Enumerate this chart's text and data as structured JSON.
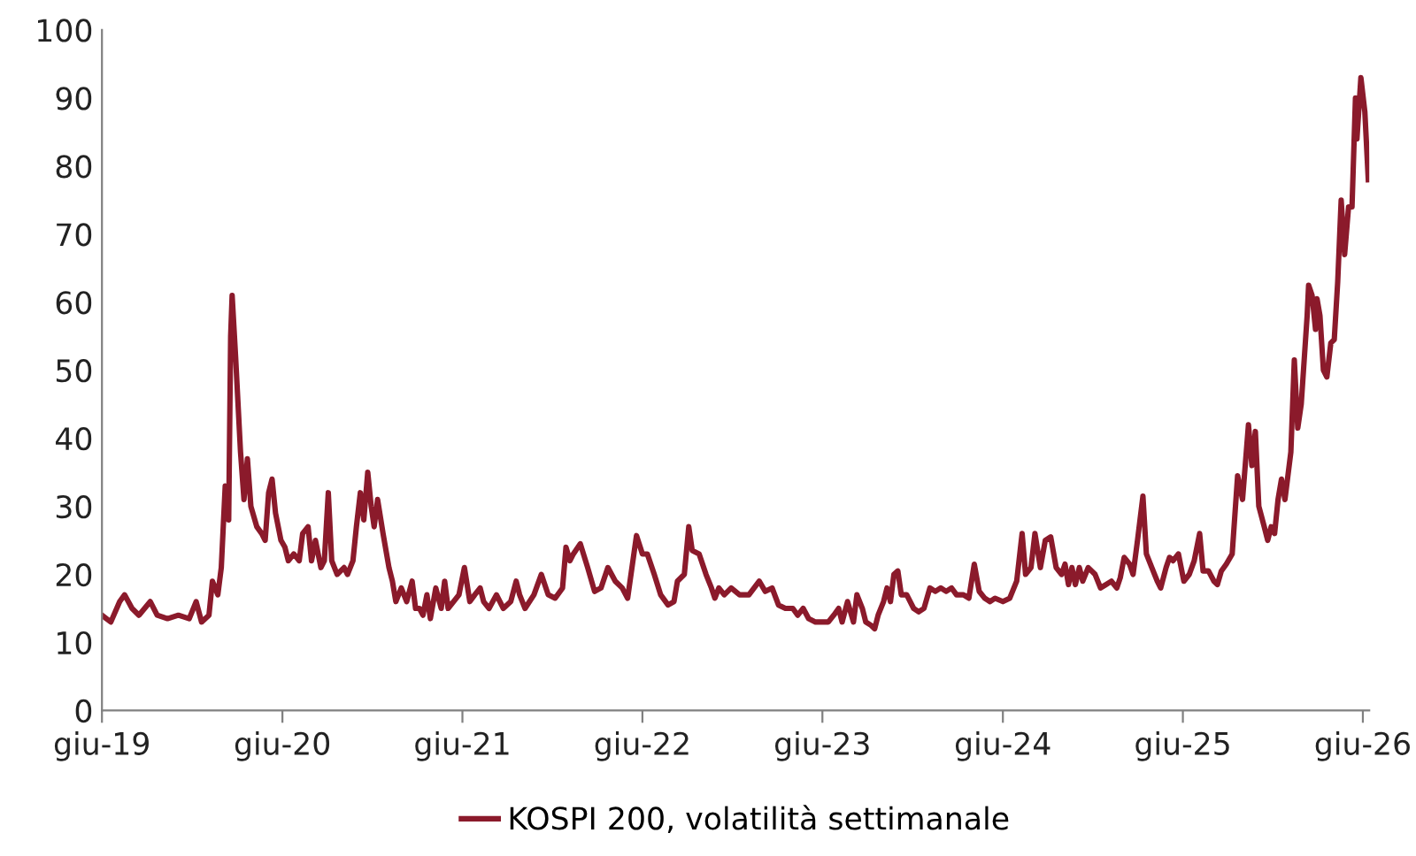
{
  "chart_data": {
    "type": "line",
    "xlim": [
      "2019-06-01",
      "2026-06-14"
    ],
    "xticks": [
      {
        "value": "2019-06-01",
        "label": "giu-19"
      },
      {
        "value": "2020-06-01",
        "label": "giu-20"
      },
      {
        "value": "2021-06-01",
        "label": "giu-21"
      },
      {
        "value": "2022-06-01",
        "label": "giu-22"
      },
      {
        "value": "2023-06-01",
        "label": "giu-23"
      },
      {
        "value": "2024-06-01",
        "label": "giu-24"
      },
      {
        "value": "2025-06-01",
        "label": "giu-25"
      },
      {
        "value": "2026-06-01",
        "label": "giu-26"
      }
    ],
    "ylim": [
      0,
      100
    ],
    "yticks": [
      0,
      10,
      20,
      30,
      40,
      50,
      60,
      70,
      80,
      90,
      100
    ],
    "grid": false,
    "legend": "bottom",
    "marker": "none",
    "line_style": "solid",
    "x": [
      "2019-06-01",
      "2019-06-19",
      "2019-07-07",
      "2019-07-17",
      "2019-08-01",
      "2019-08-15",
      "2019-09-07",
      "2019-09-21",
      "2019-10-12",
      "2019-11-03",
      "2019-11-25",
      "2019-12-09",
      "2019-12-20",
      "2020-01-04",
      "2020-01-11",
      "2020-01-22",
      "2020-01-29",
      "2020-02-06",
      "2020-02-13",
      "2020-02-17",
      "2020-02-20",
      "2020-02-27",
      "2020-03-08",
      "2020-03-15",
      "2020-03-22",
      "2020-03-29",
      "2020-04-10",
      "2020-04-20",
      "2020-04-27",
      "2020-05-04",
      "2020-05-11",
      "2020-05-18",
      "2020-05-29",
      "2020-06-06",
      "2020-06-13",
      "2020-06-24",
      "2020-07-05",
      "2020-07-12",
      "2020-07-23",
      "2020-07-30",
      "2020-08-07",
      "2020-08-18",
      "2020-08-25",
      "2020-09-02",
      "2020-09-09",
      "2020-09-20",
      "2020-10-04",
      "2020-10-11",
      "2020-10-22",
      "2020-10-29",
      "2020-11-06",
      "2020-11-13",
      "2020-11-21",
      "2020-11-28",
      "2020-12-04",
      "2020-12-11",
      "2020-12-22",
      "2021-01-03",
      "2021-01-10",
      "2021-01-17",
      "2021-01-28",
      "2021-02-08",
      "2021-02-19",
      "2021-02-26",
      "2021-03-06",
      "2021-03-13",
      "2021-03-21",
      "2021-03-28",
      "2021-04-08",
      "2021-04-19",
      "2021-04-26",
      "2021-05-03",
      "2021-05-14",
      "2021-05-25",
      "2021-06-05",
      "2021-06-16",
      "2021-06-26",
      "2021-07-07",
      "2021-07-14",
      "2021-07-25",
      "2021-08-09",
      "2021-08-23",
      "2021-09-07",
      "2021-09-18",
      "2021-09-25",
      "2021-10-06",
      "2021-10-24",
      "2021-11-08",
      "2021-11-22",
      "2021-12-06",
      "2021-12-21",
      "2021-12-28",
      "2022-01-05",
      "2022-01-12",
      "2022-01-26",
      "2022-02-10",
      "2022-02-24",
      "2022-03-09",
      "2022-03-23",
      "2022-04-07",
      "2022-04-21",
      "2022-05-02",
      "2022-05-20",
      "2022-06-01",
      "2022-06-11",
      "2022-06-25",
      "2022-07-08",
      "2022-07-23",
      "2022-08-04",
      "2022-08-11",
      "2022-08-25",
      "2022-09-03",
      "2022-09-10",
      "2022-09-24",
      "2022-10-08",
      "2022-10-19",
      "2022-10-26",
      "2022-11-03",
      "2022-11-14",
      "2022-11-28",
      "2022-12-15",
      "2023-01-03",
      "2023-01-24",
      "2023-02-05",
      "2023-02-19",
      "2023-03-04",
      "2023-03-18",
      "2023-04-02",
      "2023-04-12",
      "2023-04-23",
      "2023-05-04",
      "2023-05-18",
      "2023-06-01",
      "2023-06-13",
      "2023-06-24",
      "2023-07-04",
      "2023-07-11",
      "2023-07-22",
      "2023-08-03",
      "2023-08-10",
      "2023-08-21",
      "2023-08-28",
      "2023-09-08",
      "2023-09-15",
      "2023-09-22",
      "2023-10-03",
      "2023-10-10",
      "2023-10-17",
      "2023-10-24",
      "2023-11-01",
      "2023-11-08",
      "2023-11-19",
      "2023-12-03",
      "2023-12-13",
      "2023-12-24",
      "2024-01-05",
      "2024-01-16",
      "2024-01-27",
      "2024-02-07",
      "2024-02-18",
      "2024-02-28",
      "2024-03-13",
      "2024-03-24",
      "2024-04-04",
      "2024-04-14",
      "2024-04-25",
      "2024-05-06",
      "2024-05-16",
      "2024-06-01",
      "2024-06-15",
      "2024-06-29",
      "2024-07-10",
      "2024-07-17",
      "2024-07-28",
      "2024-08-05",
      "2024-08-16",
      "2024-08-26",
      "2024-09-06",
      "2024-09-17",
      "2024-09-28",
      "2024-10-05",
      "2024-10-12",
      "2024-10-19",
      "2024-10-26",
      "2024-11-03",
      "2024-11-10",
      "2024-11-21",
      "2024-12-05",
      "2024-12-16",
      "2024-12-27",
      "2025-01-07",
      "2025-01-18",
      "2025-01-25",
      "2025-02-02",
      "2025-02-13",
      "2025-02-20",
      "2025-03-01",
      "2025-03-12",
      "2025-03-19",
      "2025-03-30",
      "2025-04-10",
      "2025-04-17",
      "2025-04-28",
      "2025-05-05",
      "2025-05-12",
      "2025-05-23",
      "2025-06-03",
      "2025-06-14",
      "2025-06-24",
      "2025-07-05",
      "2025-07-12",
      "2025-07-23",
      "2025-08-03",
      "2025-08-10",
      "2025-08-18",
      "2025-08-28",
      "2025-09-09",
      "2025-09-20",
      "2025-09-30",
      "2025-10-12",
      "2025-10-19",
      "2025-10-26",
      "2025-11-02",
      "2025-11-13",
      "2025-11-20",
      "2025-11-27",
      "2025-12-04",
      "2025-12-11",
      "2025-12-18",
      "2025-12-25",
      "2026-01-06",
      "2026-01-13",
      "2026-01-20",
      "2026-01-27",
      "2026-02-08",
      "2026-02-11",
      "2026-02-18",
      "2026-02-25",
      "2026-02-28",
      "2026-03-06",
      "2026-03-13",
      "2026-03-20",
      "2026-03-28",
      "2026-04-04",
      "2026-04-11",
      "2026-04-18",
      "2026-04-25",
      "2026-05-03",
      "2026-05-10",
      "2026-05-17",
      "2026-05-20",
      "2026-05-28",
      "2026-06-05",
      "2026-06-12"
    ],
    "series": [
      {
        "name": "KOSPI 200, volatilità settimanale",
        "color": "#8b1a2b",
        "values": [
          14,
          13,
          16,
          17,
          15,
          14,
          16,
          14,
          13.5,
          14,
          13.5,
          16,
          13,
          14,
          19,
          17,
          21,
          33,
          28,
          55,
          61,
          52,
          38,
          31,
          37,
          30,
          27,
          26,
          25,
          32,
          34,
          29,
          25,
          24,
          22,
          23,
          22,
          26,
          27,
          22,
          25,
          21,
          22,
          32,
          22,
          20,
          21,
          20,
          22,
          27,
          32,
          28,
          35,
          30,
          27,
          31,
          26,
          21,
          19,
          16,
          18,
          16,
          19,
          15,
          15,
          14,
          17,
          13.5,
          18,
          15,
          19,
          15,
          16,
          17,
          21,
          16,
          17,
          18,
          16,
          15,
          17,
          15,
          16,
          19,
          17,
          15,
          17,
          20,
          17,
          16.5,
          18,
          24,
          22,
          23,
          24.5,
          21,
          17.5,
          18,
          21,
          19,
          18,
          16.5,
          25.7,
          23,
          23,
          20,
          17,
          15.5,
          16,
          19,
          20,
          27,
          23.5,
          23,
          20,
          18,
          16.5,
          18,
          17,
          18,
          17,
          17,
          19,
          17.5,
          18,
          15.5,
          15,
          15,
          14,
          15,
          13.5,
          13,
          13,
          13,
          14,
          15,
          13,
          16,
          13,
          17,
          15,
          13,
          12.5,
          12,
          14,
          16,
          18,
          16,
          20,
          20.5,
          17,
          17,
          15,
          14.5,
          15,
          18,
          17.5,
          18,
          17.5,
          18,
          17,
          17,
          16.5,
          21.5,
          17.5,
          16.5,
          16,
          16.5,
          16,
          16.5,
          19,
          26,
          20,
          21,
          26,
          21,
          25,
          25.5,
          21,
          20,
          21.5,
          18.5,
          21,
          18.5,
          21,
          19,
          21,
          20,
          18,
          18.5,
          19,
          18,
          19.5,
          22.5,
          21.5,
          20,
          25,
          31.5,
          23,
          21,
          19,
          18,
          21,
          22.5,
          22,
          23,
          19,
          20,
          22,
          26,
          20.5,
          20.5,
          19,
          18.5,
          20.5,
          21.5,
          23,
          34.5,
          31,
          42,
          36,
          41,
          30,
          27,
          25,
          27,
          26,
          31,
          34,
          31,
          38,
          51.5,
          41.5,
          45,
          58,
          62.5,
          61,
          56,
          60.5,
          58,
          50,
          49,
          54,
          54.5,
          63,
          75,
          67,
          74,
          74,
          90,
          84,
          93,
          88,
          78
        ]
      }
    ]
  }
}
